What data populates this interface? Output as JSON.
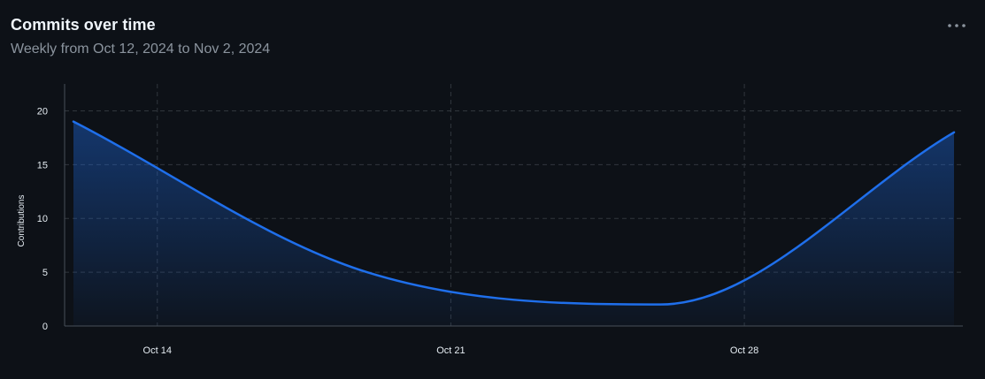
{
  "header": {
    "title": "Commits over time",
    "subtitle": "Weekly from Oct 12, 2024 to Nov 2, 2024",
    "more_icon": "kebab-horizontal-icon"
  },
  "colors": {
    "background": "#0d1117",
    "line": "#1f6feb",
    "grid": "#30363d",
    "axis": "#484f58",
    "text": "#e6edf3",
    "muted": "#8b949e"
  },
  "chart_data": {
    "type": "area",
    "title": "Commits over time",
    "subtitle": "Weekly from Oct 12, 2024 to Nov 2, 2024",
    "ylabel": "Contributions",
    "xlabel": "",
    "x": [
      "2024-10-12",
      "2024-10-19",
      "2024-10-26",
      "2024-11-02"
    ],
    "series": [
      {
        "name": "",
        "values": [
          19,
          5,
          2,
          18
        ]
      }
    ],
    "ylim": [
      0,
      22.5
    ],
    "yticks": [
      0,
      5,
      10,
      15,
      20
    ],
    "xticks": [
      {
        "date": "2024-10-14",
        "label": "Oct 14"
      },
      {
        "date": "2024-10-21",
        "label": "Oct 21"
      },
      {
        "date": "2024-10-28",
        "label": "Oct 28"
      }
    ],
    "xlim": [
      "2024-10-12",
      "2024-11-02"
    ],
    "grid": true,
    "legend": "none"
  }
}
